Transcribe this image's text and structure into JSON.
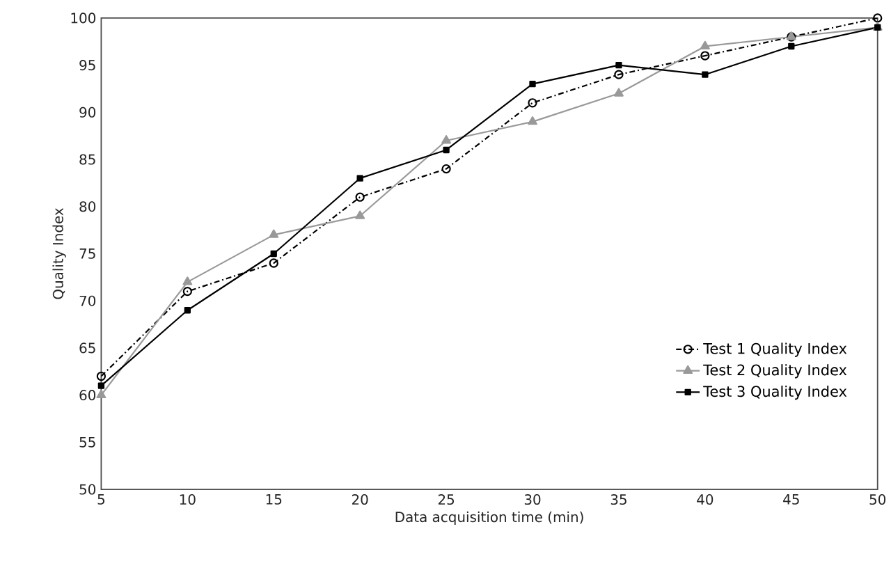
{
  "chart_data": {
    "type": "line",
    "xlabel": "Data acquisition time (min)",
    "ylabel": "Quality Index",
    "x": [
      5,
      10,
      15,
      20,
      25,
      30,
      35,
      40,
      45,
      50
    ],
    "series": [
      {
        "name": "Test 1 Quality Index",
        "color": "#000000",
        "marker": "circle",
        "line_style": "dashdot",
        "values": [
          62,
          71,
          74,
          81,
          84,
          91,
          94,
          96,
          98,
          100
        ]
      },
      {
        "name": "Test 2 Quality Index",
        "color": "#999999",
        "marker": "triangle",
        "line_style": "solid",
        "values": [
          60,
          72,
          77,
          79,
          87,
          89,
          92,
          97,
          98,
          99
        ]
      },
      {
        "name": "Test 3 Quality Index",
        "color": "#000000",
        "marker": "square",
        "line_style": "solid",
        "values": [
          61,
          69,
          75,
          83,
          86,
          93,
          95,
          94,
          97,
          99
        ]
      }
    ],
    "xlim": [
      5,
      50
    ],
    "xticks": [
      5,
      10,
      15,
      20,
      25,
      30,
      35,
      40,
      45,
      50
    ],
    "ylim": [
      50,
      100
    ],
    "yticks": [
      50,
      55,
      60,
      65,
      70,
      75,
      80,
      85,
      90,
      95,
      100
    ],
    "grid": false,
    "legend": "bottom right"
  }
}
